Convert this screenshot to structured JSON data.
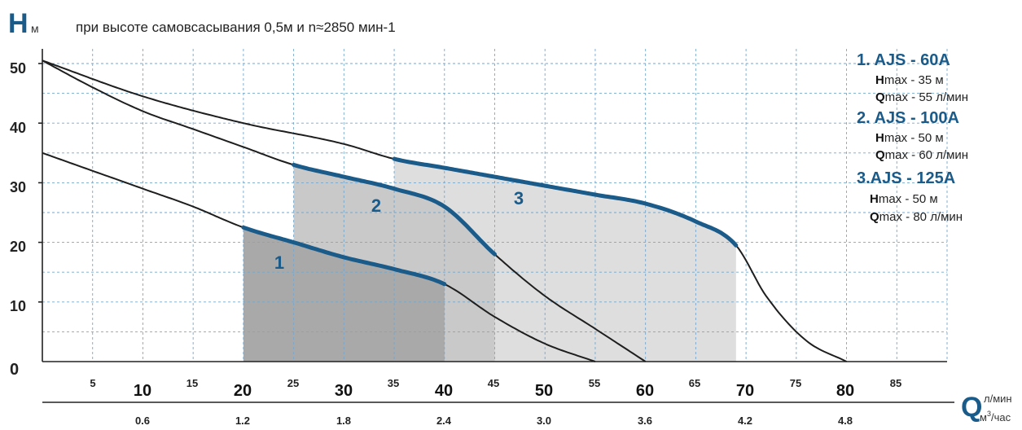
{
  "chart_data": {
    "type": "line",
    "title": "при высоте самовсасывания 0,5м и n≈2850 мин-1",
    "y_axis": {
      "letter": "H",
      "unit": "м",
      "ticks": [
        "10",
        "20",
        "30",
        "40",
        "50"
      ],
      "zero_label": "0",
      "ylim": [
        0,
        52
      ]
    },
    "x_axis": {
      "letter": "Q",
      "unit_top": "л/мин",
      "unit_bottom_base": "м",
      "unit_bottom_sup": "3",
      "unit_bottom_tail": "/час",
      "major_ticks": [
        "10",
        "20",
        "30",
        "40",
        "50",
        "60",
        "70",
        "80"
      ],
      "minor_ticks": [
        "5",
        "15",
        "25",
        "35",
        "45",
        "55",
        "65",
        "75",
        "85"
      ],
      "m3h_ticks": [
        "0.6",
        "1.2",
        "1.8",
        "2.4",
        "3.0",
        "3.6",
        "4.2",
        "4.8"
      ],
      "xlim": [
        0,
        90
      ]
    },
    "grid": true,
    "colors": {
      "accent": "#1a5b8a",
      "curve": "#1e1e1e",
      "grid": "#7aa6c8"
    },
    "series": [
      {
        "label": "1",
        "x": [
          0,
          5,
          10,
          15,
          20,
          25,
          30,
          35,
          40,
          45,
          50,
          55
        ],
        "y": [
          35,
          32,
          29,
          26,
          22.5,
          20,
          17.5,
          15.5,
          13,
          7.5,
          3,
          0
        ],
        "operating_range": [
          20,
          40
        ]
      },
      {
        "label": "2",
        "x": [
          0,
          5,
          10,
          15,
          20,
          25,
          30,
          35,
          40,
          45,
          50,
          55,
          60
        ],
        "y": [
          50.5,
          46,
          42,
          39,
          36,
          33,
          31,
          29,
          26,
          18,
          11,
          5.5,
          0
        ],
        "operating_range": [
          25,
          45
        ]
      },
      {
        "label": "3",
        "x": [
          0,
          10,
          20,
          30,
          35,
          40,
          45,
          50,
          55,
          60,
          65,
          69,
          72,
          76,
          80
        ],
        "y": [
          50.5,
          44.5,
          40,
          36.5,
          34,
          32.5,
          31,
          29.5,
          28,
          26.5,
          23.5,
          19.5,
          11,
          3.5,
          0
        ],
        "operating_range": [
          35,
          69
        ]
      }
    ],
    "legend": [
      {
        "title": "1. AJS - 60A",
        "h_label": "H",
        "h_text": "max - 35 м",
        "q_label": "Q",
        "q_text": "max - 55 л/мин"
      },
      {
        "title": "2. AJS - 100A",
        "h_label": "H",
        "h_text": "max - 50 м",
        "q_label": "Q",
        "q_text": "max - 60 л/мин"
      },
      {
        "title": "3.AJS - 125A",
        "h_label": "H",
        "h_text": "max - 50 м",
        "q_label": "Q",
        "q_text": "max - 80 л/мин"
      }
    ]
  }
}
